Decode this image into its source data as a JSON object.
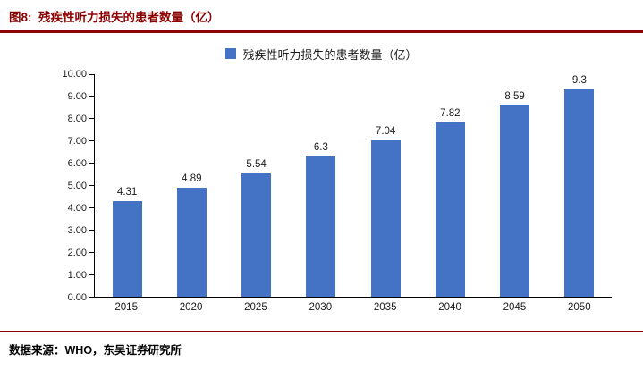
{
  "figure": {
    "title": "图8:  残疾性听力损失的患者数量（亿）",
    "source": "数据来源：WHO，东吴证券研究所",
    "accent_color": "#8B0000"
  },
  "chart_data": {
    "type": "bar",
    "title": "",
    "legend": [
      "残疾性听力损失的患者数量（亿）"
    ],
    "legend_position": "top",
    "categories": [
      "2015",
      "2020",
      "2025",
      "2030",
      "2035",
      "2040",
      "2045",
      "2050"
    ],
    "values": [
      4.31,
      4.89,
      5.54,
      6.3,
      7.04,
      7.82,
      8.59,
      9.3
    ],
    "xlabel": "",
    "ylabel": "",
    "ylim": [
      0,
      10
    ],
    "ytick_labels": [
      "0.00",
      "1.00",
      "2.00",
      "3.00",
      "4.00",
      "5.00",
      "6.00",
      "7.00",
      "8.00",
      "9.00",
      "10.00"
    ],
    "grid": false,
    "bar_color": "#4472C4"
  }
}
